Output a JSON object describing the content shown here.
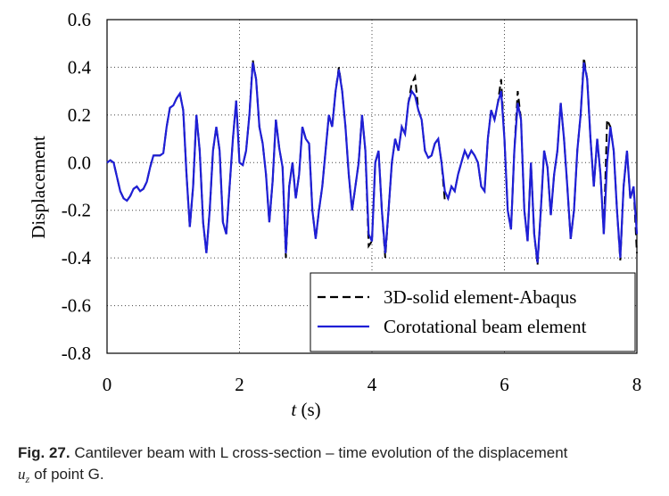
{
  "chart_data": {
    "type": "line",
    "ylabel": "Displacement",
    "xlabel_symbol": "t",
    "xlabel_unit": "(s)",
    "xlim": [
      0,
      8
    ],
    "xticks": [
      0,
      2,
      4,
      6,
      8
    ],
    "ylim": [
      -0.8,
      0.6
    ],
    "yticks": [
      0.6,
      0.4,
      0.2,
      {
        "value": 0,
        "label": "0.0"
      },
      -0.2,
      -0.4,
      -0.6,
      -0.8
    ],
    "grid": true,
    "legend": "lower right",
    "x": [
      0,
      0.05,
      0.1,
      0.15,
      0.2,
      0.25,
      0.3,
      0.35,
      0.4,
      0.45,
      0.5,
      0.55,
      0.6,
      0.65,
      0.7,
      0.75,
      0.8,
      0.85,
      0.9,
      0.95,
      1,
      1.05,
      1.1,
      1.15,
      1.2,
      1.25,
      1.3,
      1.35,
      1.4,
      1.45,
      1.5,
      1.55,
      1.6,
      1.65,
      1.7,
      1.75,
      1.8,
      1.85,
      1.9,
      1.95,
      2,
      2.05,
      2.1,
      2.15,
      2.2,
      2.25,
      2.3,
      2.35,
      2.4,
      2.45,
      2.5,
      2.55,
      2.6,
      2.65,
      2.7,
      2.75,
      2.8,
      2.85,
      2.9,
      2.95,
      3,
      3.05,
      3.1,
      3.15,
      3.2,
      3.25,
      3.3,
      3.35,
      3.4,
      3.45,
      3.5,
      3.55,
      3.6,
      3.65,
      3.7,
      3.75,
      3.8,
      3.85,
      3.9,
      3.95,
      4,
      4.05,
      4.1,
      4.15,
      4.2,
      4.25,
      4.3,
      4.35,
      4.4,
      4.45,
      4.5,
      4.55,
      4.6,
      4.65,
      4.7,
      4.75,
      4.8,
      4.85,
      4.9,
      4.95,
      5,
      5.05,
      5.1,
      5.15,
      5.2,
      5.25,
      5.3,
      5.35,
      5.4,
      5.45,
      5.5,
      5.55,
      5.6,
      5.65,
      5.7,
      5.75,
      5.8,
      5.85,
      5.9,
      5.95,
      6,
      6.05,
      6.1,
      6.15,
      6.2,
      6.25,
      6.3,
      6.35,
      6.4,
      6.45,
      6.5,
      6.55,
      6.6,
      6.65,
      6.7,
      6.75,
      6.8,
      6.85,
      6.9,
      6.95,
      7,
      7.05,
      7.1,
      7.15,
      7.2,
      7.25,
      7.3,
      7.35,
      7.4,
      7.45,
      7.5,
      7.55,
      7.6,
      7.65,
      7.7,
      7.75,
      7.8,
      7.85,
      7.9,
      7.95,
      8
    ],
    "series": [
      {
        "name": "3D-solid element-Abaqus",
        "color": "#000000",
        "dash": true,
        "values": [
          0,
          0.01,
          0,
          -0.06,
          -0.12,
          -0.15,
          -0.16,
          -0.14,
          -0.11,
          -0.1,
          -0.12,
          -0.11,
          -0.08,
          -0.02,
          0.03,
          0.03,
          0.03,
          0.04,
          0.15,
          0.23,
          0.24,
          0.27,
          0.29,
          0.22,
          -0.05,
          -0.27,
          -0.1,
          0.2,
          0.05,
          -0.25,
          -0.38,
          -0.2,
          0.05,
          0.15,
          0.05,
          -0.25,
          -0.3,
          -0.1,
          0.1,
          0.26,
          0,
          -0.01,
          0.05,
          0.2,
          0.43,
          0.35,
          0.15,
          0.08,
          -0.05,
          -0.25,
          -0.08,
          0.18,
          0.06,
          -0.02,
          -0.4,
          -0.1,
          0,
          -0.15,
          -0.05,
          0.15,
          0.1,
          0.08,
          -0.2,
          -0.32,
          -0.2,
          -0.1,
          0.05,
          0.2,
          0.15,
          0.3,
          0.4,
          0.3,
          0.15,
          -0.05,
          -0.2,
          -0.1,
          0,
          0.2,
          0.05,
          -0.35,
          -0.33,
          0,
          0.05,
          -0.2,
          -0.4,
          -0.2,
          0,
          0.1,
          0.05,
          0.15,
          0.12,
          0.25,
          0.33,
          0.36,
          0.22,
          0.18,
          0.05,
          0.02,
          0.03,
          0.08,
          0.1,
          0,
          -0.16,
          -0.15,
          -0.1,
          -0.12,
          -0.05,
          0,
          0.05,
          0.02,
          0.05,
          0.03,
          0,
          -0.1,
          -0.12,
          0.1,
          0.22,
          0.18,
          0.25,
          0.35,
          0.1,
          -0.2,
          -0.28,
          0.05,
          0.3,
          0.18,
          -0.2,
          -0.33,
          0,
          -0.3,
          -0.43,
          -0.2,
          0.05,
          -0.02,
          -0.22,
          -0.05,
          0.05,
          0.25,
          0.1,
          -0.1,
          -0.32,
          -0.2,
          0.05,
          0.2,
          0.44,
          0.35,
          0.1,
          -0.1,
          0.1,
          -0.05,
          -0.3,
          0.18,
          0.15,
          0.05,
          -0.2,
          -0.41,
          -0.1,
          0.05,
          -0.15,
          -0.1,
          -0.38
        ]
      },
      {
        "name": "Corotational beam element",
        "color": "#1f1fd6",
        "dash": false,
        "values": [
          0,
          0.01,
          0,
          -0.06,
          -0.12,
          -0.15,
          -0.16,
          -0.14,
          -0.11,
          -0.1,
          -0.12,
          -0.11,
          -0.08,
          -0.02,
          0.03,
          0.03,
          0.03,
          0.04,
          0.15,
          0.23,
          0.24,
          0.27,
          0.29,
          0.22,
          -0.05,
          -0.27,
          -0.1,
          0.2,
          0.05,
          -0.25,
          -0.38,
          -0.2,
          0.05,
          0.15,
          0.05,
          -0.25,
          -0.3,
          -0.1,
          0.1,
          0.26,
          0,
          -0.01,
          0.05,
          0.2,
          0.42,
          0.35,
          0.15,
          0.08,
          -0.05,
          -0.25,
          -0.08,
          0.18,
          0.06,
          -0.02,
          -0.38,
          -0.1,
          0,
          -0.15,
          -0.05,
          0.15,
          0.1,
          0.08,
          -0.2,
          -0.32,
          -0.2,
          -0.1,
          0.05,
          0.2,
          0.15,
          0.3,
          0.39,
          0.3,
          0.15,
          -0.05,
          -0.2,
          -0.1,
          0,
          0.2,
          0.05,
          -0.3,
          -0.33,
          0,
          0.05,
          -0.2,
          -0.38,
          -0.2,
          0,
          0.1,
          0.05,
          0.15,
          0.12,
          0.25,
          0.3,
          0.28,
          0.22,
          0.18,
          0.05,
          0.02,
          0.03,
          0.08,
          0.1,
          0,
          -0.12,
          -0.15,
          -0.1,
          -0.12,
          -0.05,
          0,
          0.05,
          0.02,
          0.05,
          0.03,
          0,
          -0.1,
          -0.12,
          0.1,
          0.22,
          0.18,
          0.25,
          0.3,
          0.1,
          -0.2,
          -0.28,
          0.05,
          0.25,
          0.18,
          -0.2,
          -0.33,
          0,
          -0.3,
          -0.42,
          -0.2,
          0.05,
          -0.02,
          -0.22,
          -0.05,
          0.05,
          0.25,
          0.1,
          -0.1,
          -0.32,
          -0.2,
          0.05,
          0.2,
          0.42,
          0.35,
          0.1,
          -0.1,
          0.1,
          -0.05,
          -0.3,
          0,
          0.15,
          0.05,
          -0.2,
          -0.4,
          -0.1,
          0.05,
          -0.15,
          -0.1,
          -0.3
        ]
      }
    ]
  },
  "caption": {
    "label": "Fig. 27.",
    "text": "Cantilever beam with L cross-section – time evolution of the displacement",
    "symbol": "u",
    "subscript": "z",
    "end": "of point G."
  }
}
